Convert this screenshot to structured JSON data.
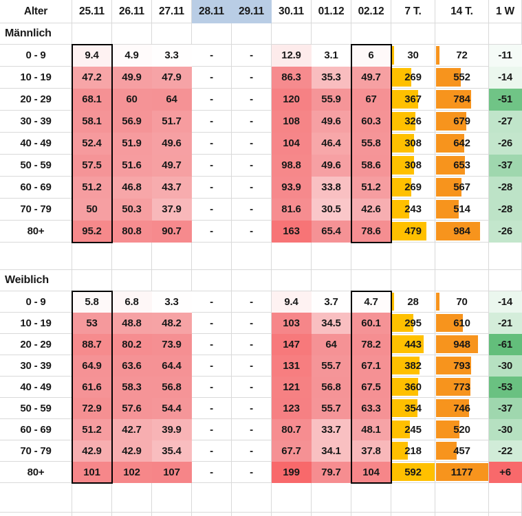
{
  "table": {
    "columns": [
      {
        "label": "Alter",
        "type": "age"
      },
      {
        "label": "25.11",
        "type": "daily",
        "boxed": true
      },
      {
        "label": "26.11",
        "type": "daily"
      },
      {
        "label": "27.11",
        "type": "daily"
      },
      {
        "label": "28.11",
        "type": "daily",
        "highlighted": true
      },
      {
        "label": "29.11",
        "type": "daily",
        "highlighted": true
      },
      {
        "label": "30.11",
        "type": "daily"
      },
      {
        "label": "01.12",
        "type": "daily"
      },
      {
        "label": "02.12",
        "type": "daily",
        "boxed": true
      },
      {
        "label": "7 T.",
        "type": "bar7"
      },
      {
        "label": "14 T.",
        "type": "bar14"
      },
      {
        "label": "1 W",
        "type": "trend"
      }
    ],
    "sections": [
      {
        "label": "Männlich",
        "rows": [
          {
            "age": "0 - 9",
            "daily": [
              "9.4",
              "4.9",
              "3.3",
              "-",
              "-",
              "12.9",
              "3.1",
              "6"
            ],
            "t7": 30,
            "t14": 72,
            "w1": "-11"
          },
          {
            "age": "10 - 19",
            "daily": [
              "47.2",
              "49.9",
              "47.9",
              "-",
              "-",
              "86.3",
              "35.3",
              "49.7"
            ],
            "t7": 269,
            "t14": 552,
            "w1": "-14"
          },
          {
            "age": "20 - 29",
            "daily": [
              "68.1",
              "60",
              "64",
              "-",
              "-",
              "120",
              "55.9",
              "67"
            ],
            "t7": 367,
            "t14": 784,
            "w1": "-51"
          },
          {
            "age": "30 - 39",
            "daily": [
              "58.1",
              "56.9",
              "51.7",
              "-",
              "-",
              "108",
              "49.6",
              "60.3"
            ],
            "t7": 326,
            "t14": 679,
            "w1": "-27"
          },
          {
            "age": "40 - 49",
            "daily": [
              "52.4",
              "51.9",
              "49.6",
              "-",
              "-",
              "104",
              "46.4",
              "55.8"
            ],
            "t7": 308,
            "t14": 642,
            "w1": "-26"
          },
          {
            "age": "50 - 59",
            "daily": [
              "57.5",
              "51.6",
              "49.7",
              "-",
              "-",
              "98.8",
              "49.6",
              "58.6"
            ],
            "t7": 308,
            "t14": 653,
            "w1": "-37"
          },
          {
            "age": "60 - 69",
            "daily": [
              "51.2",
              "46.8",
              "43.7",
              "-",
              "-",
              "93.9",
              "33.8",
              "51.2"
            ],
            "t7": 269,
            "t14": 567,
            "w1": "-28"
          },
          {
            "age": "70 - 79",
            "daily": [
              "50",
              "50.3",
              "37.9",
              "-",
              "-",
              "81.6",
              "30.5",
              "42.6"
            ],
            "t7": 243,
            "t14": 514,
            "w1": "-28"
          },
          {
            "age": "80+",
            "daily": [
              "95.2",
              "80.8",
              "90.7",
              "-",
              "-",
              "163",
              "65.4",
              "78.6"
            ],
            "t7": 479,
            "t14": 984,
            "w1": "-26"
          }
        ]
      },
      {
        "label": "Weiblich",
        "rows": [
          {
            "age": "0 - 9",
            "daily": [
              "5.8",
              "6.8",
              "3.3",
              "-",
              "-",
              "9.4",
              "3.7",
              "4.7"
            ],
            "t7": 28,
            "t14": 70,
            "w1": "-14"
          },
          {
            "age": "10 - 19",
            "daily": [
              "53",
              "48.8",
              "48.2",
              "-",
              "-",
              "103",
              "34.5",
              "60.1"
            ],
            "t7": 295,
            "t14": 610,
            "w1": "-21"
          },
          {
            "age": "20 - 29",
            "daily": [
              "88.7",
              "80.2",
              "73.9",
              "-",
              "-",
              "147",
              "64",
              "78.2"
            ],
            "t7": 443,
            "t14": 948,
            "w1": "-61"
          },
          {
            "age": "30 - 39",
            "daily": [
              "64.9",
              "63.6",
              "64.4",
              "-",
              "-",
              "131",
              "55.7",
              "67.1"
            ],
            "t7": 382,
            "t14": 793,
            "w1": "-30"
          },
          {
            "age": "40 - 49",
            "daily": [
              "61.6",
              "58.3",
              "56.8",
              "-",
              "-",
              "121",
              "56.8",
              "67.5"
            ],
            "t7": 360,
            "t14": 773,
            "w1": "-53"
          },
          {
            "age": "50 - 59",
            "daily": [
              "72.9",
              "57.6",
              "54.4",
              "-",
              "-",
              "123",
              "55.7",
              "63.3"
            ],
            "t7": 354,
            "t14": 746,
            "w1": "-37"
          },
          {
            "age": "60 - 69",
            "daily": [
              "51.2",
              "42.7",
              "39.9",
              "-",
              "-",
              "80.7",
              "33.7",
              "48.1"
            ],
            "t7": 245,
            "t14": 520,
            "w1": "-30"
          },
          {
            "age": "70 - 79",
            "daily": [
              "42.9",
              "42.9",
              "35.4",
              "-",
              "-",
              "67.7",
              "34.1",
              "37.8"
            ],
            "t7": 218,
            "t14": 457,
            "w1": "-22"
          },
          {
            "age": "80+",
            "daily": [
              "101",
              "102",
              "107",
              "-",
              "-",
              "199",
              "79.7",
              "104"
            ],
            "t7": 592,
            "t14": 1177,
            "w1": "+6"
          }
        ]
      }
    ]
  },
  "scales": {
    "heat_min": 3,
    "heat_mid": 55,
    "heat_max": 199,
    "bar7_max": 592,
    "bar14_max": 1177,
    "trend_full_green_at": -55,
    "trend_white_at": -8
  },
  "colors": {
    "heat_low": "#FFFFFF",
    "heat_mid": "#F59598",
    "heat_high": "#F8696B",
    "bar_7t": "#FFC000",
    "bar_14t": "#F7941D",
    "trend_green": "#63BE7B",
    "trend_red": "#F8696B",
    "header_highlight": "#B9CDE5",
    "gridline": "#D9D9D9",
    "text": "#181818",
    "box_border": "#000000"
  }
}
